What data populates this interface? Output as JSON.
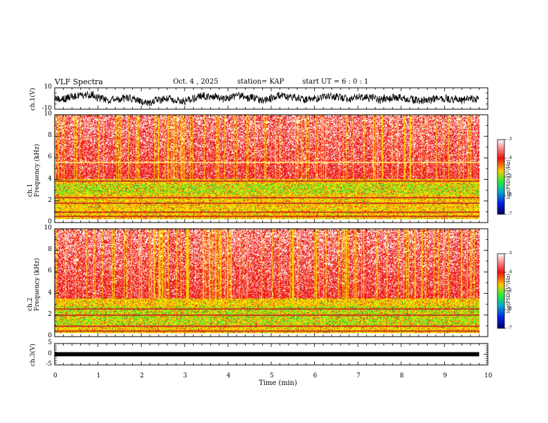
{
  "header": {
    "title": "VLF Spectra",
    "date": "Oct. 4 , 2025",
    "station": "station= KAP",
    "start_ut": "start UT =  6 : 0 : 1"
  },
  "chart_data": [
    {
      "type": "line",
      "name": "ch1-waveform",
      "ylabel": "ch.1(V)",
      "ylim": [
        -10,
        10
      ],
      "yticks": [
        10,
        -10
      ],
      "xlim": [
        0,
        10
      ],
      "description_values": "noisy waveform roughly within -5 to 5 V"
    },
    {
      "type": "heatmap",
      "name": "ch1-spectrogram",
      "ylabel": "ch.1\nFrequency  (kHz)",
      "ylim": [
        0,
        10
      ],
      "yticks": [
        0,
        2,
        4,
        6,
        8,
        10
      ],
      "xlim": [
        0,
        9.8
      ],
      "colorbar": {
        "label": "log(PSD)(V²/Hz)",
        "range": [
          -7,
          -3
        ],
        "ticks": [
          -3,
          -4,
          -5,
          -6,
          -7
        ]
      },
      "bands_khz": {
        "hot_above": 4.0,
        "green_band": [
          2.6,
          3.6
        ],
        "lines": [
          0.6,
          1.0,
          1.8,
          2.3,
          3.9,
          5.6
        ]
      }
    },
    {
      "type": "heatmap",
      "name": "ch2-spectrogram",
      "ylabel": "ch.2\nFrequency  (kHz)",
      "ylim": [
        0,
        10
      ],
      "yticks": [
        0,
        2,
        4,
        6,
        8,
        10
      ],
      "xlim": [
        0,
        9.8
      ],
      "colorbar": {
        "label": "log(PSD)(V²/Hz)",
        "range": [
          -7,
          -3
        ],
        "ticks": [
          -3,
          -4,
          -5,
          -6,
          -7
        ]
      },
      "bands_khz": {
        "hot_above": 3.5,
        "green_band": [
          1.0,
          2.8
        ],
        "lines": [
          0.5,
          1.0,
          2.0,
          2.6
        ]
      }
    },
    {
      "type": "line",
      "name": "ch3-waveform",
      "ylabel": "ch.3(V)",
      "ylim": [
        -5,
        5
      ],
      "yticks": [
        5,
        0,
        -5
      ],
      "xlim": [
        0,
        10
      ],
      "level_v": 0
    }
  ],
  "xaxis": {
    "label": "Time  (min)",
    "ticks": [
      "0",
      "1",
      "2",
      "3",
      "4",
      "5",
      "6",
      "7",
      "8",
      "9",
      "10"
    ]
  },
  "colors": {
    "hot": "#ee2222",
    "warm": "#ffaa00",
    "yellow": "#ffee00",
    "green": "#33ee33",
    "white": "#ffffff",
    "trace": "#000000"
  }
}
